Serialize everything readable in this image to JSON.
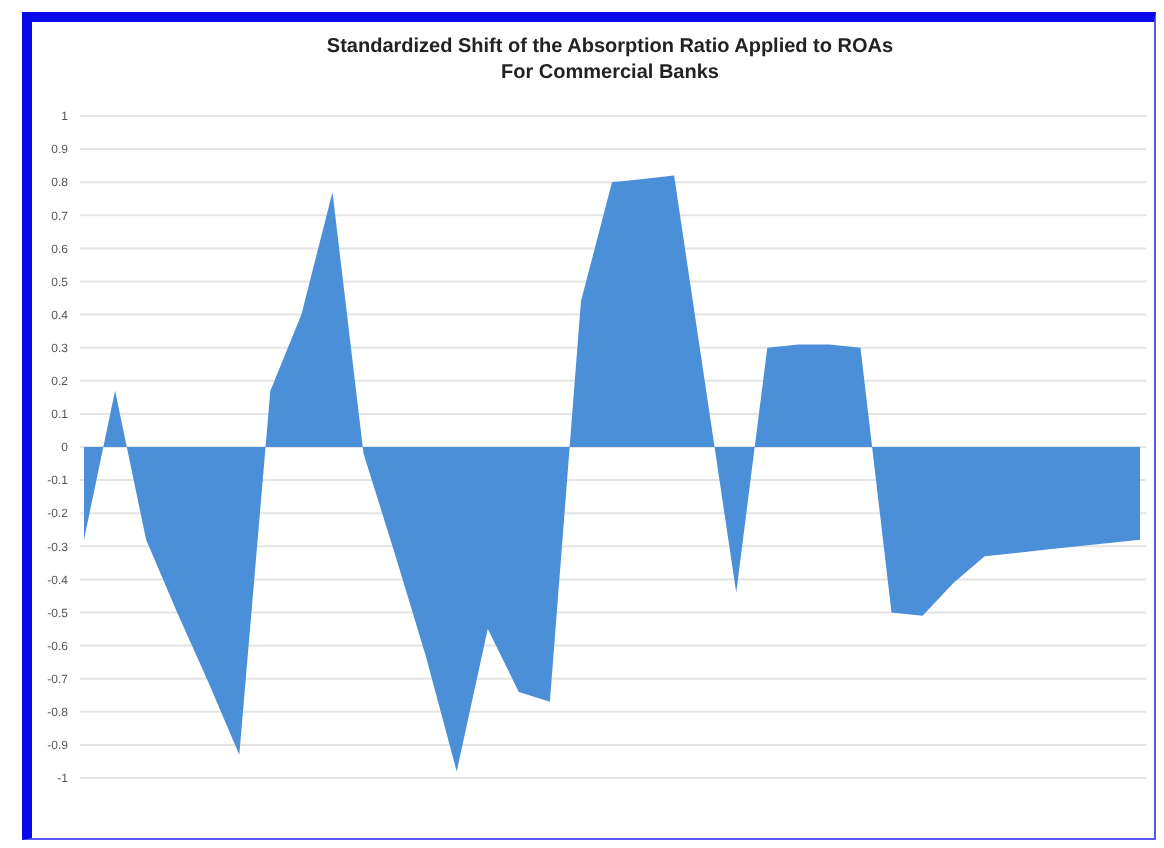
{
  "chart_data": {
    "type": "area",
    "title": "Standardized Shift of the Absorption Ratio Applied to ROAs\nFor Commercial Banks",
    "categories": [
      null,
      null,
      null,
      null,
      null,
      null,
      null,
      null,
      null,
      null,
      null,
      null,
      null,
      null,
      null,
      null,
      null,
      null,
      null,
      null,
      null,
      null,
      null,
      null,
      null,
      null,
      null,
      null,
      null,
      null,
      null,
      null,
      null,
      null,
      null
    ],
    "series": [
      {
        "color": "#4a8fd8",
        "values": [
          -0.28,
          0.17,
          -0.28,
          -0.5,
          -0.71,
          -0.93,
          0.17,
          0.4,
          0.77,
          -0.02,
          -0.32,
          -0.63,
          -0.98,
          -0.55,
          -0.74,
          -0.77,
          0.44,
          0.8,
          0.81,
          0.82,
          0.19,
          -0.44,
          0.3,
          0.31,
          0.31,
          0.3,
          -0.5,
          -0.51,
          -0.41,
          -0.33,
          -0.32,
          -0.31,
          -0.3,
          -0.29,
          -0.28
        ]
      }
    ],
    "ylim": [
      -1,
      1
    ],
    "yticks": [
      -1,
      -0.9,
      -0.8,
      -0.7,
      -0.6,
      -0.5,
      -0.4,
      -0.3,
      -0.2,
      -0.1,
      0,
      0.1,
      0.2,
      0.3,
      0.4,
      0.5,
      0.6,
      0.7,
      0.8,
      0.9,
      1
    ],
    "grid": "y"
  }
}
